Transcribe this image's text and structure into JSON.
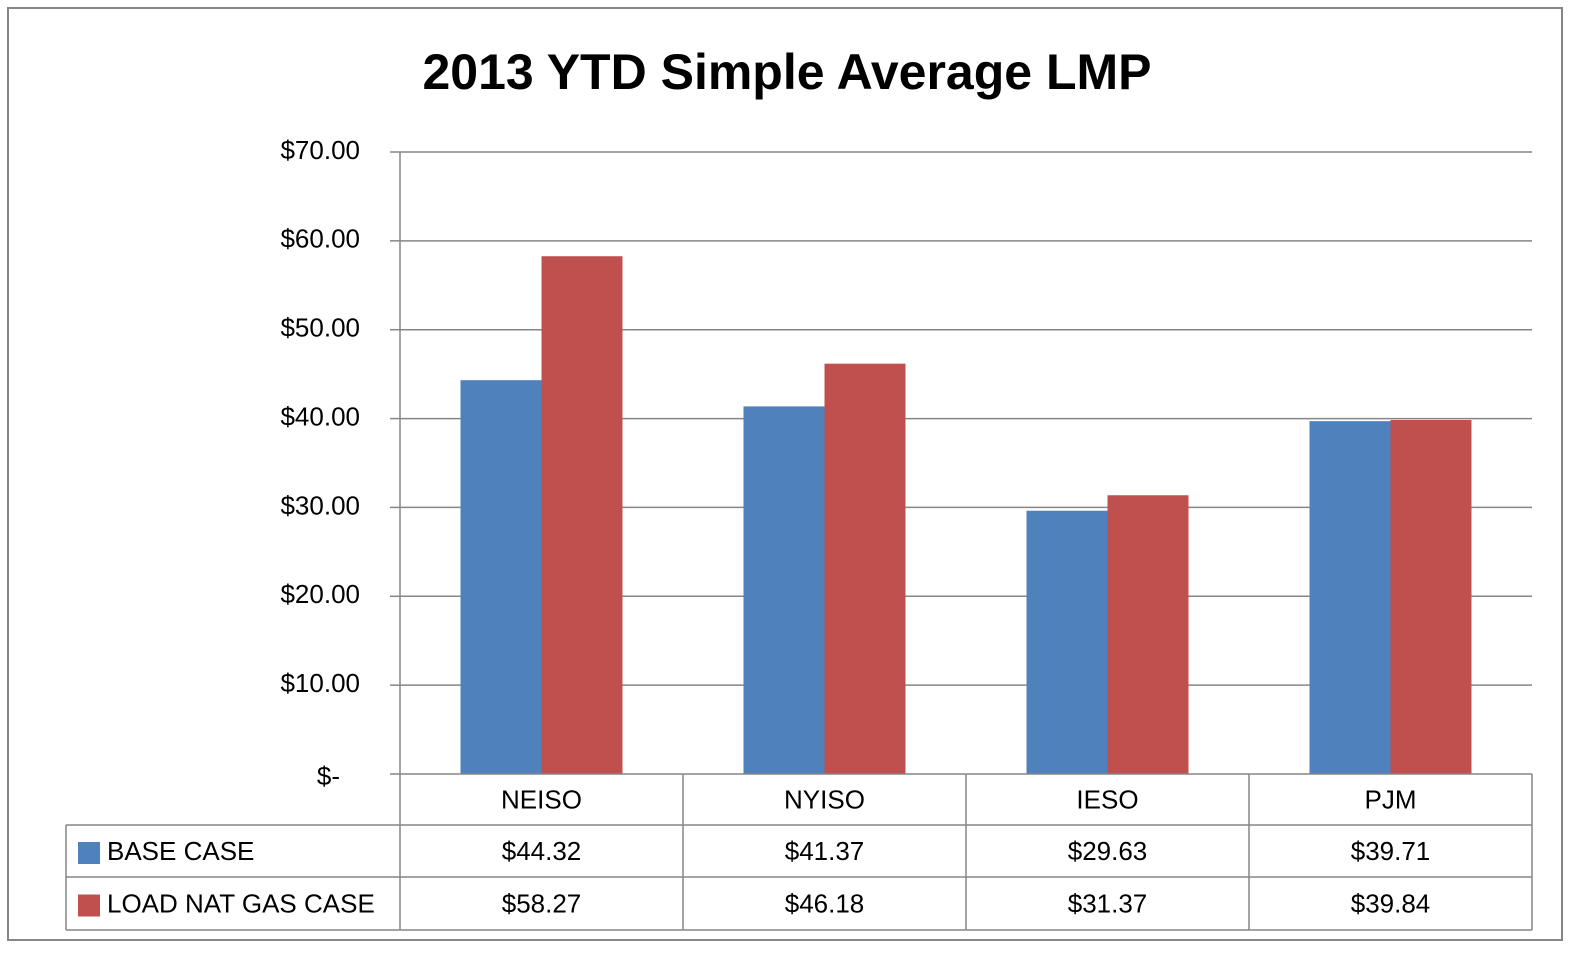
{
  "chart_data": {
    "type": "bar",
    "title": "2013 YTD Simple Average LMP",
    "categories": [
      "NEISO",
      "NYISO",
      "IESO",
      "PJM"
    ],
    "series": [
      {
        "name": "BASE CASE",
        "color": "#4f81bd",
        "values": [
          44.32,
          41.37,
          29.63,
          39.71
        ],
        "value_labels": [
          "$44.32",
          "$41.37",
          "$29.63",
          "$39.71"
        ]
      },
      {
        "name": "LOAD NAT GAS CASE",
        "color": "#c0504d",
        "values": [
          58.27,
          46.18,
          31.37,
          39.84
        ],
        "value_labels": [
          "$58.27",
          "$46.18",
          "$31.37",
          "$39.84"
        ]
      }
    ],
    "ylim": [
      0,
      70
    ],
    "yticks": [
      {
        "value": 0,
        "label": "$-"
      },
      {
        "value": 10,
        "label": "$10.00"
      },
      {
        "value": 20,
        "label": "$20.00"
      },
      {
        "value": 30,
        "label": "$30.00"
      },
      {
        "value": 40,
        "label": "$40.00"
      },
      {
        "value": 50,
        "label": "$50.00"
      },
      {
        "value": 60,
        "label": "$60.00"
      },
      {
        "value": 70,
        "label": "$70.00"
      }
    ],
    "grid": true
  }
}
